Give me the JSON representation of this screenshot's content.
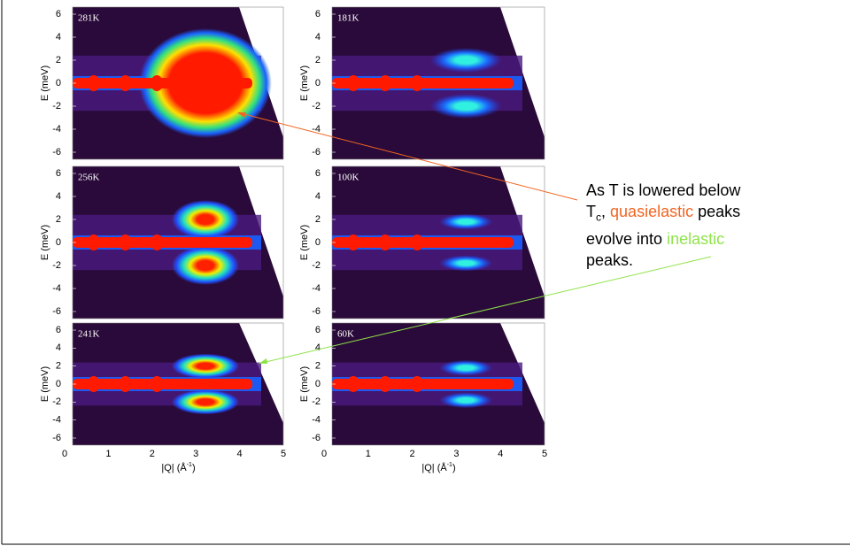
{
  "panels": [
    {
      "label": "281K"
    },
    {
      "label": "181K"
    },
    {
      "label": "256K"
    },
    {
      "label": "100K"
    },
    {
      "label": "241K"
    },
    {
      "label": "60K"
    }
  ],
  "y_axis_label": "E (meV)",
  "x_axis_label": {
    "main": "|Q| (Å",
    "sup": "-1",
    "close": ")"
  },
  "y_ticks": [
    "6",
    "4",
    "2",
    "0",
    "-2",
    "-4",
    "-6"
  ],
  "x_ticks": [
    "0",
    "1",
    "2",
    "3",
    "4",
    "5"
  ],
  "annotation": {
    "line1": "As T is lowered below",
    "t": "T",
    "sub": "c",
    "comma": ",",
    "quasielastic": "quasielastic",
    "peaks": "peaks",
    "evolve": "evolve into",
    "inelastic": "inelastic",
    "end": "peaks."
  }
}
